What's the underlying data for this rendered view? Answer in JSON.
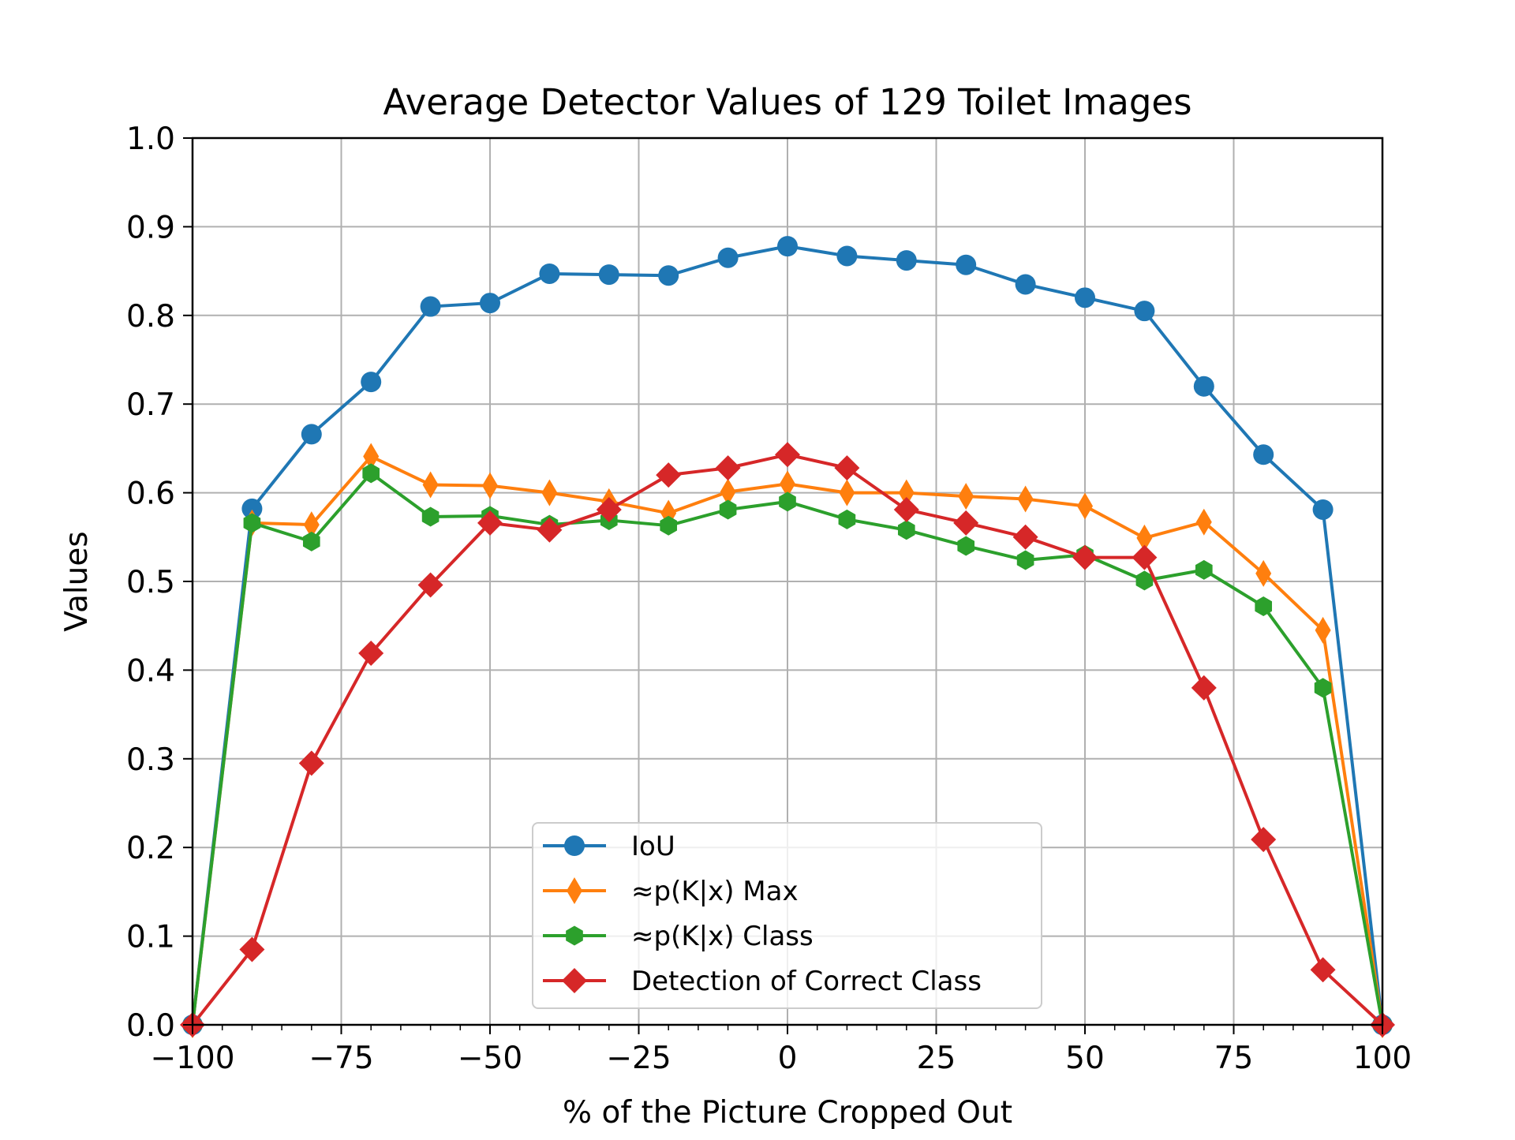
{
  "chart_data": {
    "type": "line",
    "title": "Average Detector Values of 129 Toilet Images",
    "xlabel": "% of the Picture Cropped Out",
    "ylabel": "Values",
    "xlim": [
      -100,
      100
    ],
    "ylim": [
      0,
      1.0
    ],
    "grid": true,
    "legend_position": "bottom-center",
    "x_ticks": [
      -100,
      -75,
      -50,
      -25,
      0,
      25,
      50,
      75,
      100
    ],
    "x_tick_labels": [
      "−100",
      "−75",
      "−50",
      "−25",
      "0",
      "25",
      "50",
      "75",
      "100"
    ],
    "y_ticks": [
      0,
      0.1,
      0.2,
      0.3,
      0.4,
      0.5,
      0.6,
      0.7,
      0.8,
      0.9,
      1.0
    ],
    "y_tick_labels": [
      "0.0",
      "0.1",
      "0.2",
      "0.3",
      "0.4",
      "0.5",
      "0.6",
      "0.7",
      "0.8",
      "0.9",
      "1.0"
    ],
    "x": [
      -100,
      -90,
      -80,
      -70,
      -60,
      -50,
      -40,
      -30,
      -20,
      -10,
      0,
      10,
      20,
      30,
      40,
      50,
      60,
      70,
      80,
      90,
      100
    ],
    "series": [
      {
        "name": "IoU",
        "color": "#1f77b4",
        "marker": "circle",
        "values": [
          0.0,
          0.582,
          0.666,
          0.725,
          0.81,
          0.814,
          0.847,
          0.846,
          0.845,
          0.865,
          0.878,
          0.867,
          0.862,
          0.857,
          0.835,
          0.82,
          0.805,
          0.72,
          0.643,
          0.581,
          0.0
        ]
      },
      {
        "name": "≈p(K|x) Max",
        "color": "#ff7f0e",
        "marker": "thin-diamond",
        "values": [
          0.0,
          0.566,
          0.564,
          0.641,
          0.609,
          0.608,
          0.6,
          0.59,
          0.577,
          0.601,
          0.61,
          0.6,
          0.6,
          0.596,
          0.593,
          0.585,
          0.549,
          0.567,
          0.509,
          0.445,
          0.0
        ]
      },
      {
        "name": "≈p(K|x) Class",
        "color": "#2ca02c",
        "marker": "hexagon",
        "values": [
          0.0,
          0.566,
          0.545,
          0.622,
          0.573,
          0.574,
          0.564,
          0.569,
          0.563,
          0.581,
          0.59,
          0.57,
          0.558,
          0.54,
          0.524,
          0.53,
          0.501,
          0.513,
          0.472,
          0.38,
          0.0
        ]
      },
      {
        "name": "Detection of Correct Class",
        "color": "#d62728",
        "marker": "diamond",
        "values": [
          0.0,
          0.085,
          0.295,
          0.419,
          0.496,
          0.566,
          0.558,
          0.581,
          0.62,
          0.628,
          0.643,
          0.628,
          0.581,
          0.566,
          0.55,
          0.527,
          0.527,
          0.38,
          0.209,
          0.062,
          0.0
        ]
      }
    ]
  }
}
